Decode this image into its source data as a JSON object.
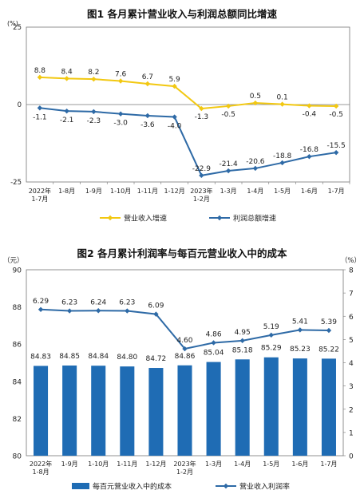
{
  "chart_data": [
    {
      "type": "line",
      "title": "图1  各月累计营业收入与利润总额同比增速",
      "yunit": "(%)",
      "ylim": [
        -25,
        25
      ],
      "yticks": [
        "25",
        "0",
        "-25"
      ],
      "categories": [
        "2022年\n1-7月",
        "1-8月",
        "1-9月",
        "1-10月",
        "1-11月",
        "1-12月",
        "2023年\n1-2月",
        "1-3月",
        "1-4月",
        "1-5月",
        "1-6月",
        "1-7月"
      ],
      "series": [
        {
          "name": "营业收入增速",
          "color": "#f2c811",
          "values": [
            8.8,
            8.4,
            8.2,
            7.6,
            6.7,
            5.9,
            -1.3,
            -0.5,
            0.5,
            0.1,
            -0.4,
            -0.5
          ],
          "labels": [
            "8.8",
            "8.4",
            "8.2",
            "7.6",
            "6.7",
            "5.9",
            "-1.3",
            "-0.5",
            "0.5",
            "0.1",
            "-0.4",
            "-0.5"
          ]
        },
        {
          "name": "利润总额增速",
          "color": "#2e6aa6",
          "values": [
            -1.1,
            -2.1,
            -2.3,
            -3.0,
            -3.6,
            -4.0,
            -22.9,
            -21.4,
            -20.6,
            -18.8,
            -16.8,
            -15.5
          ],
          "labels": [
            "-1.1",
            "-2.1",
            "-2.3",
            "-3.0",
            "-3.6",
            "-4.0",
            "-22.9",
            "-21.4",
            "-20.6",
            "-18.8",
            "-16.8",
            "-15.5"
          ]
        }
      ],
      "grid": false,
      "legend": "bottom"
    },
    {
      "type": "bar",
      "title": "图2  各月累计利润率与每百元营业收入中的成本",
      "yunit_left": "（元）",
      "yunit_right": "（%）",
      "ylim": [
        80,
        90
      ],
      "yticks": [
        "90",
        "88",
        "86",
        "84",
        "82",
        "80"
      ],
      "y2lim": [
        0,
        8
      ],
      "y2ticks": [
        "8",
        "7",
        "6",
        "5",
        "4",
        "3",
        "2",
        "1",
        "0"
      ],
      "categories": [
        "2022年\n1-8月",
        "1-9月",
        "1-10月",
        "1-11月",
        "1-12月",
        "2023年\n1-2月",
        "1-3月",
        "1-4月",
        "1-5月",
        "1-6月",
        "1-7月"
      ],
      "series": [
        {
          "name": "每百元营业收入中的成本",
          "color": "#1f6cb4",
          "axis": "left",
          "values": [
            84.83,
            84.85,
            84.84,
            84.8,
            84.72,
            84.86,
            85.04,
            85.18,
            85.29,
            85.23,
            85.22
          ],
          "labels": [
            "84.83",
            "84.85",
            "84.84",
            "84.80",
            "84.72",
            "84.86",
            "85.04",
            "85.18",
            "85.29",
            "85.23",
            "85.22"
          ]
        },
        {
          "name": "营业收入利润率",
          "color": "#2e6aa6",
          "axis": "right",
          "values": [
            6.29,
            6.23,
            6.24,
            6.23,
            6.09,
            4.6,
            4.86,
            4.95,
            5.19,
            5.41,
            5.39
          ],
          "labels": [
            "6.29",
            "6.23",
            "6.24",
            "6.23",
            "6.09",
            "4.60",
            "4.86",
            "4.95",
            "5.19",
            "5.41",
            "5.39"
          ]
        }
      ],
      "grid": false,
      "legend": "bottom"
    }
  ]
}
